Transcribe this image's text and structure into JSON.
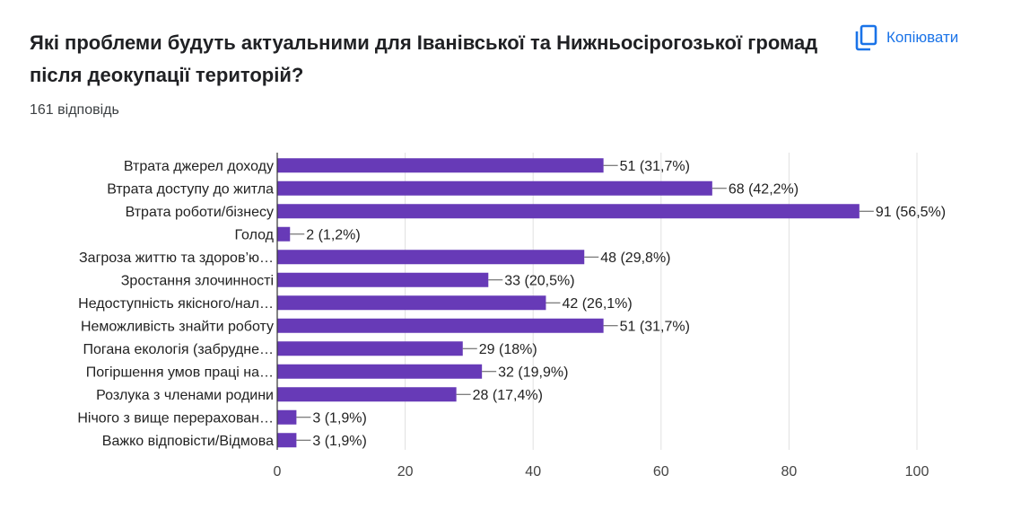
{
  "header": {
    "title": "Які проблеми будуть актуальними для Іванівської та Нижньосірогозької громад після деокупації територій?",
    "response_count": "161 відповідь",
    "copy_label": "Копіювати",
    "copy_icon": "copy-icon"
  },
  "colors": {
    "bar": "#673ab7",
    "accent": "#1a73e8",
    "grid": "#e0e0e0",
    "axis": "#333333"
  },
  "chart_data": {
    "type": "bar",
    "orientation": "horizontal",
    "title": "Які проблеми будуть актуальними для Іванівської та Нижньосірогозької громад після деокупації територій?",
    "xlabel": "",
    "ylabel": "",
    "xlim": [
      0,
      100
    ],
    "xticks": [
      0,
      20,
      40,
      60,
      80,
      100
    ],
    "grid": true,
    "categories": [
      "Втрата джерел доходу",
      "Втрата доступу до житла",
      "Втрата роботи/бізнесу",
      "Голод",
      "Загроза життю та здоров’ю…",
      "Зростання злочинності",
      "Недоступність якісного/нал…",
      "Неможливість знайти роботу",
      "Погана екологія (забрудне…",
      "Погіршення умов праці на…",
      "Розлука з членами родини",
      "Нічого з вище перерахован…",
      "Важко відповісти/Відмова"
    ],
    "values": [
      51,
      68,
      91,
      2,
      48,
      33,
      42,
      51,
      29,
      32,
      28,
      3,
      3
    ],
    "data_labels": [
      "51 (31,7%)",
      "68 (42,2%)",
      "91 (56,5%)",
      "2 (1,2%)",
      "48 (29,8%)",
      "33 (20,5%)",
      "42 (26,1%)",
      "51 (31,7%)",
      "29 (18%)",
      "32 (19,9%)",
      "28 (17,4%)",
      "3 (1,9%)",
      "3 (1,9%)"
    ]
  }
}
